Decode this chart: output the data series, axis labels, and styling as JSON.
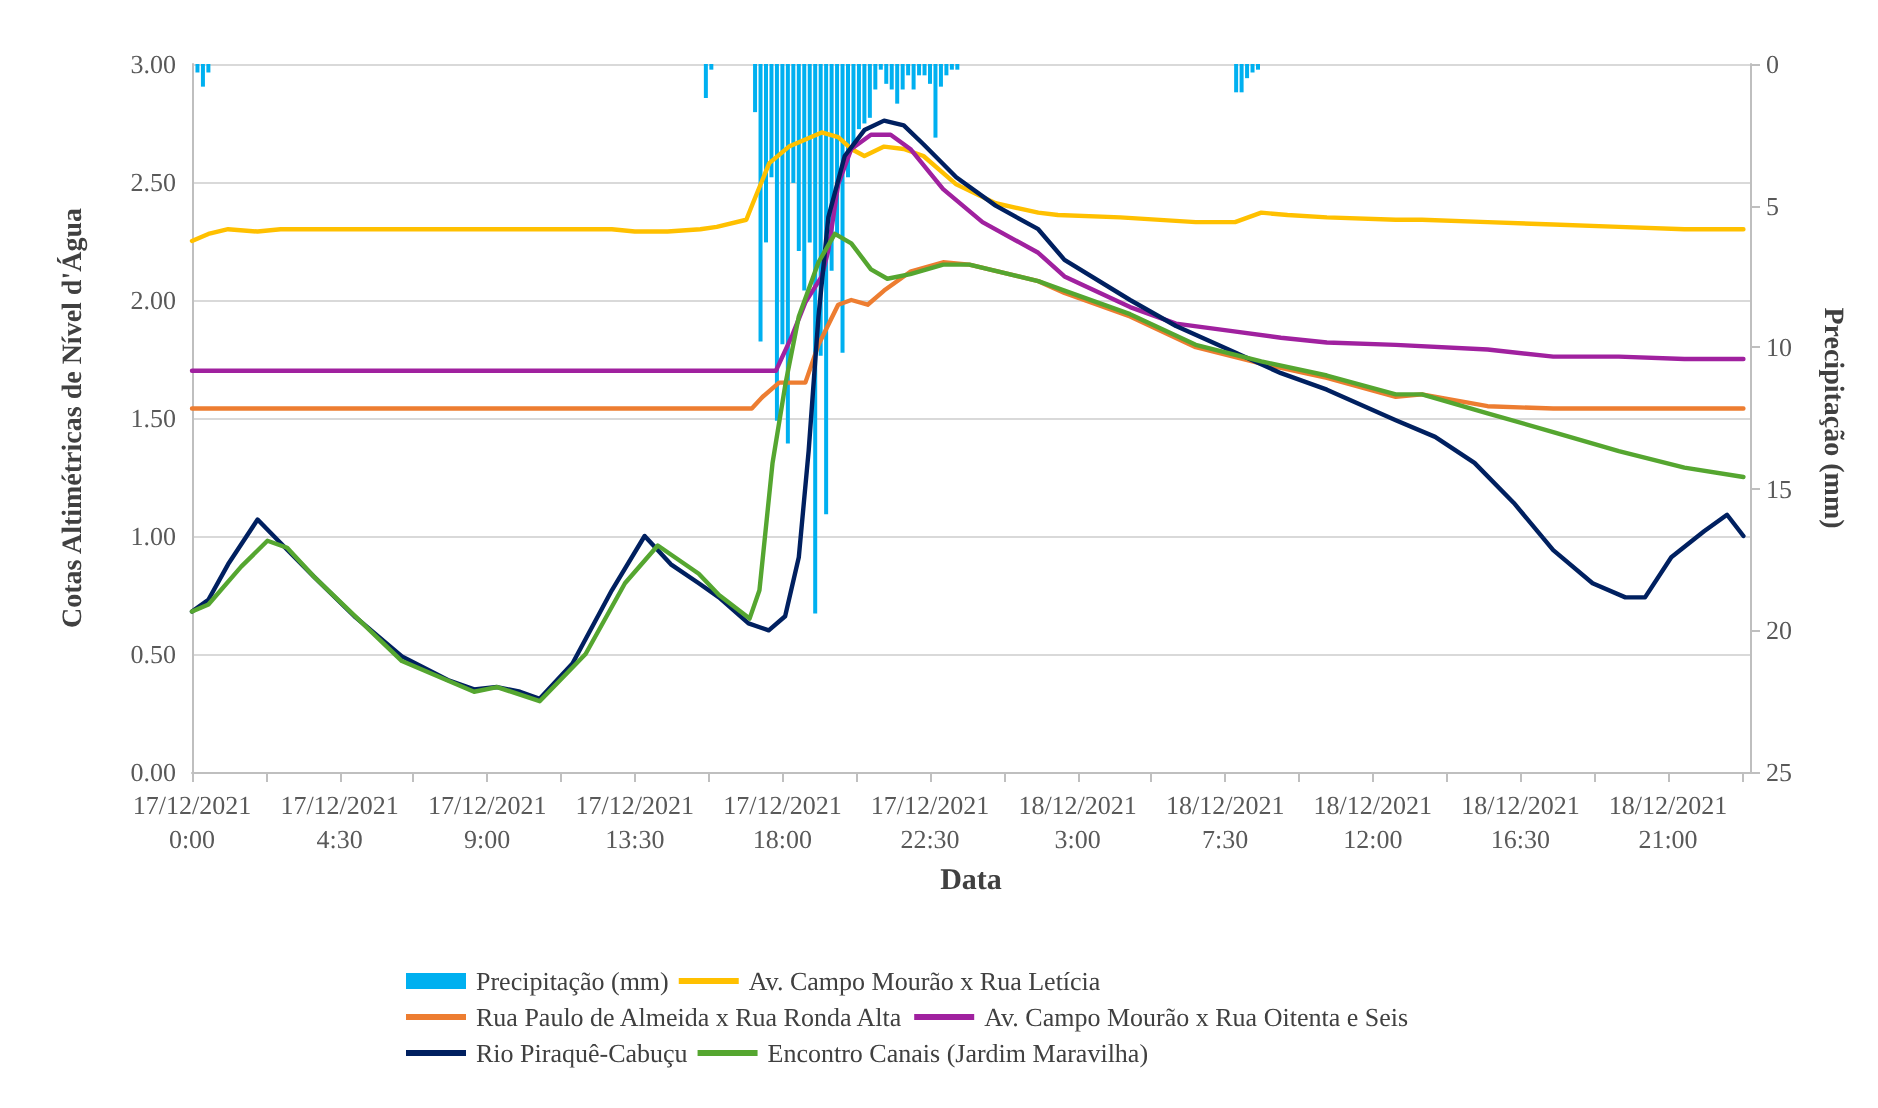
{
  "chart_data": {
    "type": "line",
    "xlabel": "Data",
    "ylabel": "Cotas Altimétricas de Nível d'Água",
    "y2label": "Precipitação (mm)",
    "xlim": [
      "2021-12-17T00:00",
      "2021-12-18T23:30"
    ],
    "xticks": [
      {
        "value": "2021-12-17T00:00",
        "label": "17/12/2021\n0:00"
      },
      {
        "value": "2021-12-17T02:15",
        "label": null
      },
      {
        "value": "2021-12-17T04:30",
        "label": "17/12/2021\n4:30"
      },
      {
        "value": "2021-12-17T06:45",
        "label": null
      },
      {
        "value": "2021-12-17T09:00",
        "label": "17/12/2021\n9:00"
      },
      {
        "value": "2021-12-17T11:15",
        "label": null
      },
      {
        "value": "2021-12-17T13:30",
        "label": "17/12/2021\n13:30"
      },
      {
        "value": "2021-12-17T15:45",
        "label": null
      },
      {
        "value": "2021-12-17T18:00",
        "label": "17/12/2021\n18:00"
      },
      {
        "value": "2021-12-17T20:15",
        "label": null
      },
      {
        "value": "2021-12-17T22:30",
        "label": "17/12/2021\n22:30"
      },
      {
        "value": "2021-12-18T00:45",
        "label": null
      },
      {
        "value": "2021-12-18T03:00",
        "label": "18/12/2021\n3:00"
      },
      {
        "value": "2021-12-18T05:15",
        "label": null
      },
      {
        "value": "2021-12-18T07:30",
        "label": "18/12/2021\n7:30"
      },
      {
        "value": "2021-12-18T09:45",
        "label": null
      },
      {
        "value": "2021-12-18T12:00",
        "label": "18/12/2021\n12:00"
      },
      {
        "value": "2021-12-18T14:15",
        "label": null
      },
      {
        "value": "2021-12-18T16:30",
        "label": "18/12/2021\n16:30"
      },
      {
        "value": "2021-12-18T18:45",
        "label": null
      },
      {
        "value": "2021-12-18T21:00",
        "label": "18/12/2021\n21:00"
      },
      {
        "value": "2021-12-18T23:15",
        "label": null
      }
    ],
    "ylim": [
      0,
      3
    ],
    "yticks": [
      {
        "value": 0,
        "label": "0.00"
      },
      {
        "value": 0.5,
        "label": "0.50"
      },
      {
        "value": 1,
        "label": "1.00"
      },
      {
        "value": 1.5,
        "label": "1.50"
      },
      {
        "value": 2,
        "label": "2.00"
      },
      {
        "value": 2.5,
        "label": "2.50"
      },
      {
        "value": 3,
        "label": "3.00"
      }
    ],
    "y2lim": [
      25,
      0
    ],
    "y2ticks": [
      0,
      5,
      10,
      15,
      20,
      25
    ],
    "grid": "y",
    "legend": "bottom",
    "marker": "none",
    "line_style": "solid",
    "series": [
      {
        "name": "Precipitação (mm)",
        "type": "bar",
        "axis": "y2",
        "color": "#00b0f0",
        "x": [
          "2021-12-17T00:10",
          "2021-12-17T00:20",
          "2021-12-17T00:30",
          "2021-12-17T15:40",
          "2021-12-17T15:50",
          "2021-12-17T17:10",
          "2021-12-17T17:20",
          "2021-12-17T17:30",
          "2021-12-17T17:40",
          "2021-12-17T17:50",
          "2021-12-17T18:00",
          "2021-12-17T18:10",
          "2021-12-17T18:20",
          "2021-12-17T18:30",
          "2021-12-17T18:40",
          "2021-12-17T18:50",
          "2021-12-17T19:00",
          "2021-12-17T19:10",
          "2021-12-17T19:20",
          "2021-12-17T19:30",
          "2021-12-17T19:40",
          "2021-12-17T19:50",
          "2021-12-17T20:00",
          "2021-12-17T20:10",
          "2021-12-17T20:20",
          "2021-12-17T20:30",
          "2021-12-17T20:40",
          "2021-12-17T20:50",
          "2021-12-17T21:00",
          "2021-12-17T21:10",
          "2021-12-17T21:20",
          "2021-12-17T21:30",
          "2021-12-17T21:40",
          "2021-12-17T21:50",
          "2021-12-17T22:00",
          "2021-12-17T22:10",
          "2021-12-17T22:20",
          "2021-12-17T22:30",
          "2021-12-17T22:40",
          "2021-12-17T22:50",
          "2021-12-17T23:00",
          "2021-12-17T23:10",
          "2021-12-17T23:20",
          "2021-12-18T07:50",
          "2021-12-18T08:00",
          "2021-12-18T08:10",
          "2021-12-18T08:20",
          "2021-12-18T08:30"
        ],
        "values": [
          0.3,
          0.8,
          0.3,
          1.2,
          0.2,
          1.7,
          9.8,
          6.3,
          4.0,
          12.6,
          9.9,
          13.4,
          4.2,
          6.6,
          8.0,
          6.3,
          19.4,
          10.3,
          15.9,
          7.3,
          6.1,
          10.2,
          4.0,
          3.0,
          2.3,
          2.1,
          1.9,
          0.9,
          0.2,
          0.7,
          0.9,
          1.4,
          0.9,
          0.4,
          0.9,
          0.4,
          0.4,
          0.7,
          2.6,
          0.8,
          0.4,
          0.2,
          0.2,
          1.0,
          1.0,
          0.5,
          0.3,
          0.2
        ]
      },
      {
        "name": "Av. Campo Mourão x Rua Letícia",
        "color": "#ffc000",
        "x": [
          "2021-12-17T00:00",
          "2021-12-17T00:30",
          "2021-12-17T01:06",
          "2021-12-17T02:00",
          "2021-12-17T02:42",
          "2021-12-17T05:00",
          "2021-12-17T10:00",
          "2021-12-17T12:48",
          "2021-12-17T13:30",
          "2021-12-17T14:30",
          "2021-12-17T15:30",
          "2021-12-17T16:00",
          "2021-12-17T16:54",
          "2021-12-17T17:06",
          "2021-12-17T17:36",
          "2021-12-17T18:12",
          "2021-12-17T18:42",
          "2021-12-17T19:12",
          "2021-12-17T19:42",
          "2021-12-17T20:06",
          "2021-12-17T20:30",
          "2021-12-17T21:06",
          "2021-12-17T21:42",
          "2021-12-17T22:18",
          "2021-12-17T23:18",
          "2021-12-18T00:30",
          "2021-12-18T01:48",
          "2021-12-18T02:24",
          "2021-12-18T04:18",
          "2021-12-18T06:36",
          "2021-12-18T07:48",
          "2021-12-18T08:36",
          "2021-12-18T09:24",
          "2021-12-18T10:36",
          "2021-12-18T12:42",
          "2021-12-18T13:30",
          "2021-12-18T15:30",
          "2021-12-18T17:30",
          "2021-12-18T19:30",
          "2021-12-18T21:30",
          "2021-12-18T23:18"
        ],
        "values": [
          2.25,
          2.28,
          2.3,
          2.29,
          2.3,
          2.3,
          2.3,
          2.3,
          2.29,
          2.29,
          2.3,
          2.31,
          2.34,
          2.41,
          2.58,
          2.65,
          2.68,
          2.71,
          2.69,
          2.64,
          2.61,
          2.65,
          2.64,
          2.61,
          2.49,
          2.41,
          2.37,
          2.36,
          2.35,
          2.33,
          2.33,
          2.37,
          2.36,
          2.35,
          2.34,
          2.34,
          2.33,
          2.32,
          2.31,
          2.3,
          2.3
        ]
      },
      {
        "name": "Rua Paulo de Almeida x Rua Ronda Alta",
        "color": "#ed7d31",
        "x": [
          "2021-12-17T00:00",
          "2021-12-17T17:04",
          "2021-12-17T17:24",
          "2021-12-17T17:54",
          "2021-12-17T18:42",
          "2021-12-17T19:06",
          "2021-12-17T19:42",
          "2021-12-17T20:06",
          "2021-12-17T20:36",
          "2021-12-17T21:06",
          "2021-12-17T21:54",
          "2021-12-17T22:54",
          "2021-12-17T23:42",
          "2021-12-18T01:48",
          "2021-12-18T02:36",
          "2021-12-18T04:36",
          "2021-12-18T06:36",
          "2021-12-18T08:36",
          "2021-12-18T10:36",
          "2021-12-18T12:42",
          "2021-12-18T13:30",
          "2021-12-18T15:30",
          "2021-12-18T17:30",
          "2021-12-18T19:30",
          "2021-12-18T21:30",
          "2021-12-18T23:18"
        ],
        "values": [
          1.54,
          1.54,
          1.59,
          1.65,
          1.65,
          1.81,
          1.98,
          2.0,
          1.98,
          2.04,
          2.12,
          2.16,
          2.15,
          2.08,
          2.03,
          1.93,
          1.8,
          1.73,
          1.67,
          1.59,
          1.6,
          1.55,
          1.54,
          1.54,
          1.54,
          1.54
        ]
      },
      {
        "name": "Av. Campo Mourão x Rua Oitenta e Seis",
        "color": "#a0219f",
        "x": [
          "2021-12-17T00:00",
          "2021-12-17T17:48",
          "2021-12-17T18:18",
          "2021-12-17T18:42",
          "2021-12-17T19:12",
          "2021-12-17T19:24",
          "2021-12-17T19:42",
          "2021-12-17T20:06",
          "2021-12-17T20:42",
          "2021-12-17T21:18",
          "2021-12-17T21:54",
          "2021-12-17T22:54",
          "2021-12-18T00:06",
          "2021-12-18T01:48",
          "2021-12-18T02:36",
          "2021-12-18T04:36",
          "2021-12-18T06:00",
          "2021-12-18T07:36",
          "2021-12-18T09:12",
          "2021-12-18T10:36",
          "2021-12-18T12:42",
          "2021-12-18T15:30",
          "2021-12-18T17:30",
          "2021-12-18T19:30",
          "2021-12-18T21:30",
          "2021-12-18T23:18"
        ],
        "values": [
          1.7,
          1.7,
          1.85,
          1.99,
          2.1,
          2.21,
          2.49,
          2.64,
          2.7,
          2.7,
          2.64,
          2.47,
          2.33,
          2.2,
          2.1,
          1.97,
          1.9,
          1.87,
          1.84,
          1.82,
          1.81,
          1.79,
          1.76,
          1.76,
          1.75,
          1.75
        ]
      },
      {
        "name": "Rio Piraquê-Cabuçu",
        "color": "#002060",
        "x": [
          "2021-12-17T00:00",
          "2021-12-17T00:30",
          "2021-12-17T01:06",
          "2021-12-17T02:00",
          "2021-12-17T02:42",
          "2021-12-17T03:42",
          "2021-12-17T04:57",
          "2021-12-17T06:24",
          "2021-12-17T07:48",
          "2021-12-17T08:36",
          "2021-12-17T09:18",
          "2021-12-17T10:00",
          "2021-12-17T10:36",
          "2021-12-17T11:36",
          "2021-12-17T12:48",
          "2021-12-17T13:48",
          "2021-12-17T14:36",
          "2021-12-17T15:27",
          "2021-12-17T16:04",
          "2021-12-17T16:58",
          "2021-12-17T17:35",
          "2021-12-17T18:05",
          "2021-12-17T18:30",
          "2021-12-17T18:48",
          "2021-12-17T19:06",
          "2021-12-17T19:24",
          "2021-12-17T19:54",
          "2021-12-17T20:30",
          "2021-12-17T21:06",
          "2021-12-17T21:42",
          "2021-12-17T22:18",
          "2021-12-17T23:18",
          "2021-12-18T00:30",
          "2021-12-18T01:48",
          "2021-12-18T02:36",
          "2021-12-18T04:36",
          "2021-12-18T06:00",
          "2021-12-18T07:36",
          "2021-12-18T09:12",
          "2021-12-18T10:36",
          "2021-12-18T12:42",
          "2021-12-18T13:54",
          "2021-12-18T15:06",
          "2021-12-18T16:18",
          "2021-12-18T17:30",
          "2021-12-18T18:42",
          "2021-12-18T19:42",
          "2021-12-18T20:18",
          "2021-12-18T21:06",
          "2021-12-18T22:06",
          "2021-12-18T22:48",
          "2021-12-18T23:18"
        ],
        "values": [
          0.68,
          0.73,
          0.88,
          1.07,
          0.97,
          0.83,
          0.66,
          0.49,
          0.39,
          0.35,
          0.36,
          0.34,
          0.31,
          0.46,
          0.77,
          1.0,
          0.88,
          0.8,
          0.74,
          0.63,
          0.6,
          0.66,
          0.91,
          1.36,
          1.93,
          2.35,
          2.61,
          2.72,
          2.76,
          2.74,
          2.66,
          2.52,
          2.4,
          2.3,
          2.17,
          2.0,
          1.89,
          1.79,
          1.69,
          1.62,
          1.49,
          1.42,
          1.31,
          1.14,
          0.94,
          0.8,
          0.74,
          0.74,
          0.91,
          1.02,
          1.09,
          1.0
        ]
      },
      {
        "name": "Encontro Canais (Jardim Maravilha)",
        "color": "#55a630",
        "x": [
          "2021-12-17T00:00",
          "2021-12-17T00:30",
          "2021-12-17T01:30",
          "2021-12-17T02:18",
          "2021-12-17T02:54",
          "2021-12-17T03:42",
          "2021-12-17T06:24",
          "2021-12-17T08:36",
          "2021-12-17T09:18",
          "2021-12-17T10:36",
          "2021-12-17T12:00",
          "2021-12-17T13:12",
          "2021-12-17T14:12",
          "2021-12-17T15:27",
          "2021-12-17T16:04",
          "2021-12-17T17:00",
          "2021-12-17T17:18",
          "2021-12-17T17:42",
          "2021-12-17T18:06",
          "2021-12-17T18:30",
          "2021-12-17T19:06",
          "2021-12-17T19:36",
          "2021-12-17T20:06",
          "2021-12-17T20:42",
          "2021-12-17T21:12",
          "2021-12-17T21:54",
          "2021-12-17T22:54",
          "2021-12-17T23:42",
          "2021-12-18T01:48",
          "2021-12-18T02:36",
          "2021-12-18T04:36",
          "2021-12-18T06:36",
          "2021-12-18T08:36",
          "2021-12-18T10:36",
          "2021-12-18T12:42",
          "2021-12-18T13:30",
          "2021-12-18T15:30",
          "2021-12-18T17:30",
          "2021-12-18T19:30",
          "2021-12-18T21:30",
          "2021-12-18T23:18"
        ],
        "values": [
          0.68,
          0.71,
          0.87,
          0.98,
          0.95,
          0.83,
          0.47,
          0.34,
          0.36,
          0.3,
          0.5,
          0.8,
          0.96,
          0.84,
          0.75,
          0.65,
          0.77,
          1.31,
          1.65,
          1.93,
          2.16,
          2.28,
          2.24,
          2.13,
          2.09,
          2.11,
          2.15,
          2.15,
          2.08,
          2.04,
          1.94,
          1.81,
          1.74,
          1.68,
          1.6,
          1.6,
          1.52,
          1.44,
          1.36,
          1.29,
          1.25
        ]
      }
    ]
  }
}
